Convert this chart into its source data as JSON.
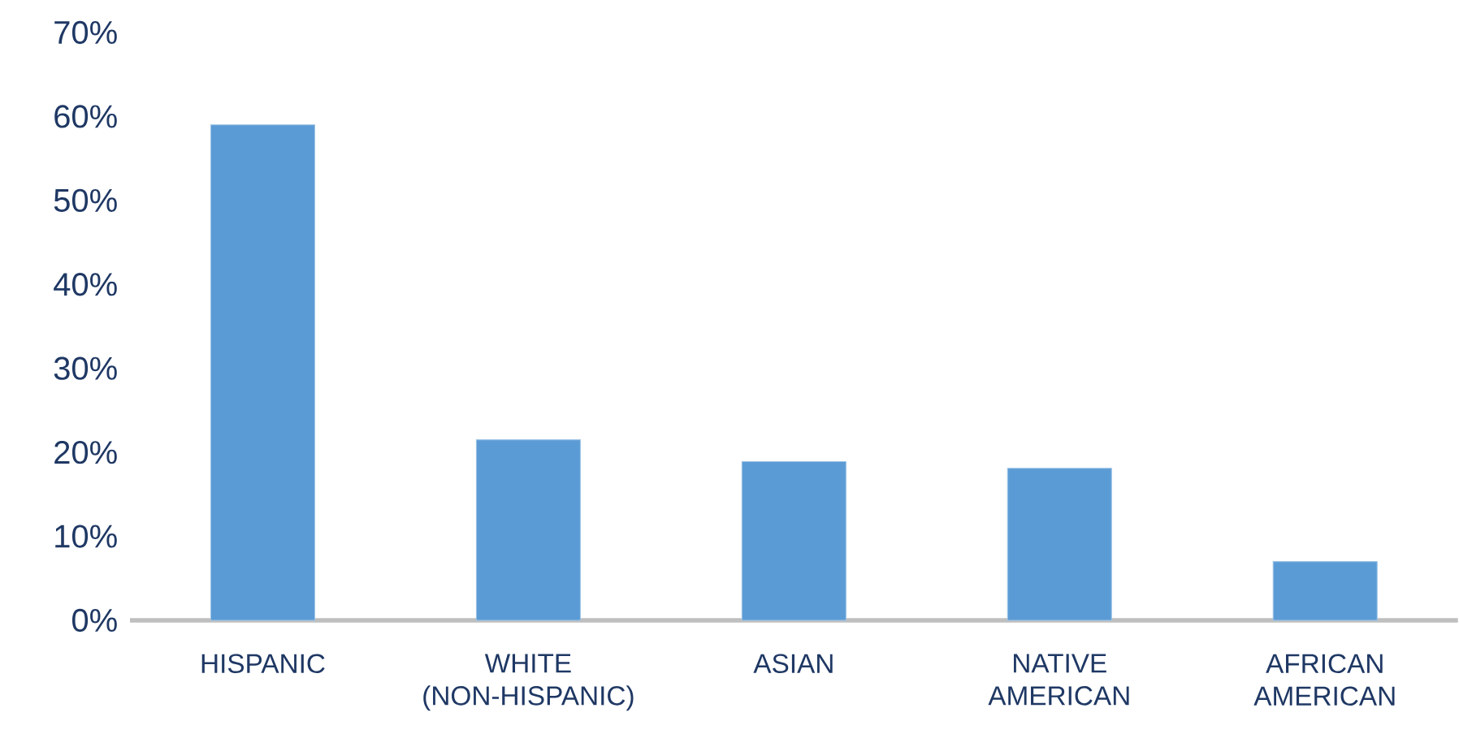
{
  "chart_data": {
    "type": "bar",
    "categories": [
      "HISPANIC",
      "WHITE (NON-HISPANIC)",
      "ASIAN",
      "NATIVE AMERICAN",
      "AFRICAN AMERICAN"
    ],
    "values": [
      59.0,
      21.5,
      18.9,
      18.1,
      7.0
    ],
    "color": "#5b9bd5",
    "ylim": [
      0,
      70
    ],
    "yticks": [
      {
        "value": 0,
        "label": "0%"
      },
      {
        "value": 10,
        "label": "10%"
      },
      {
        "value": 20,
        "label": "20%"
      },
      {
        "value": 30,
        "label": "30%"
      },
      {
        "value": 40,
        "label": "40%"
      },
      {
        "value": 50,
        "label": "50%"
      },
      {
        "value": 60,
        "label": "60%"
      },
      {
        "value": 70,
        "label": "70%"
      }
    ]
  }
}
